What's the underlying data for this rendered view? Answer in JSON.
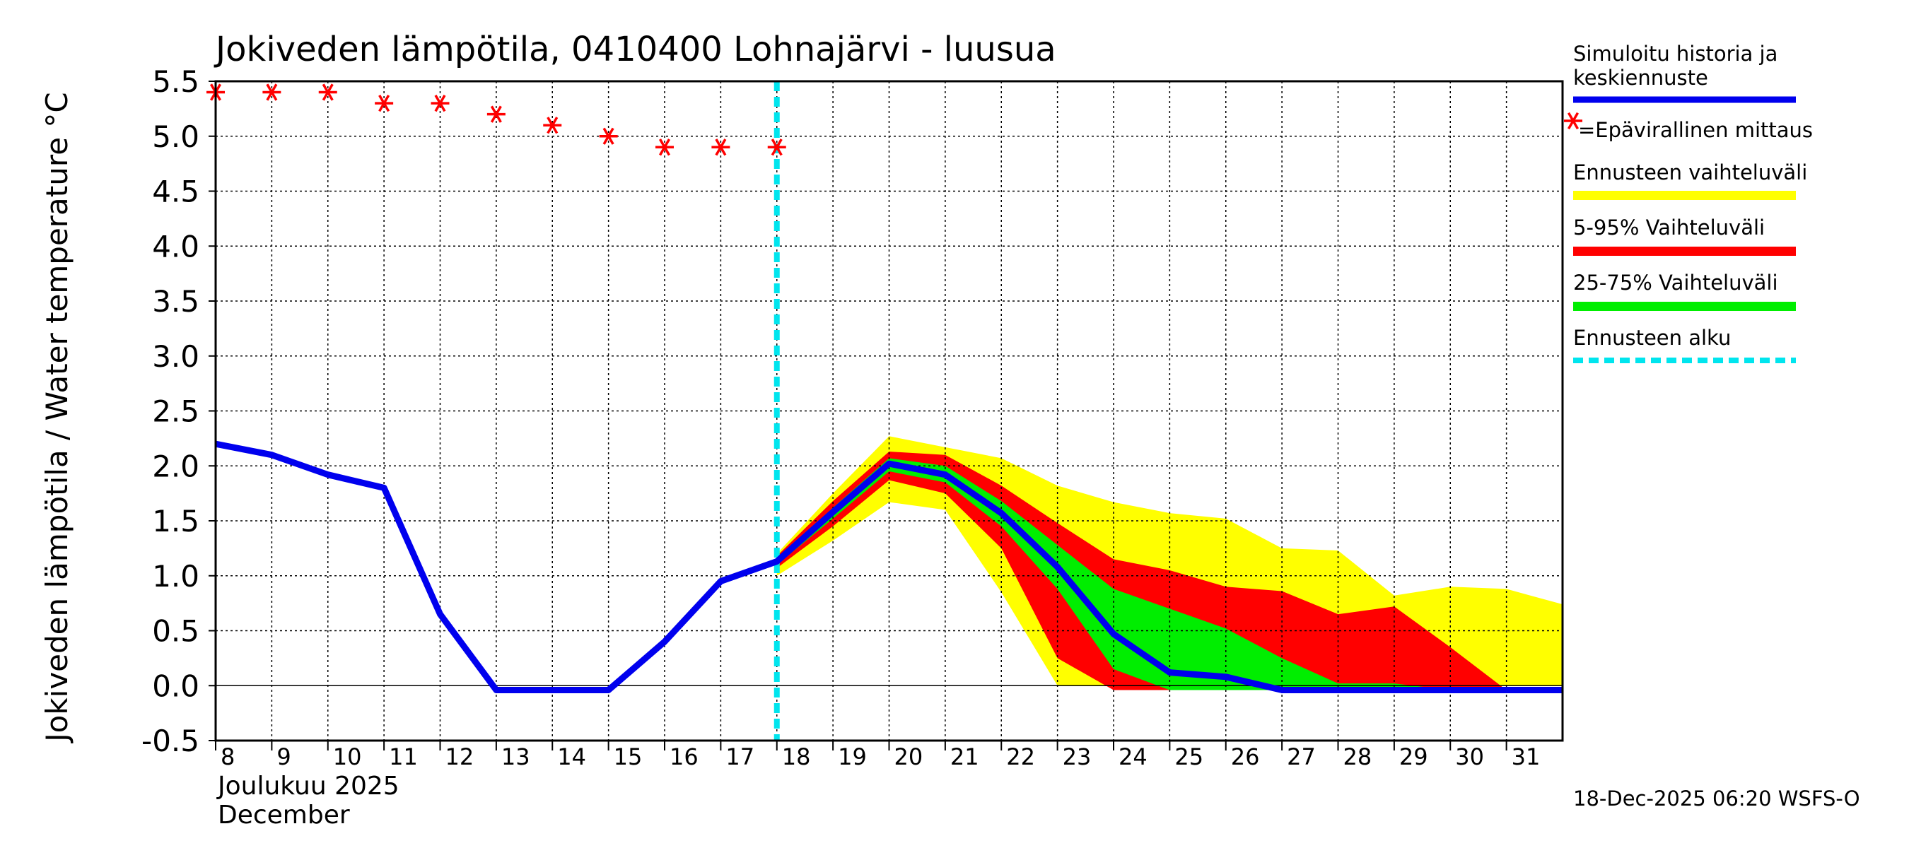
{
  "chart_data": {
    "type": "line",
    "title": "Jokiveden lämpötila, 0410400 Lohnajärvi - luusua",
    "ylabel": "Jokiveden lämpötila / Water temperature   °C",
    "ylim": [
      -0.5,
      5.5
    ],
    "yticks": [
      "5.5",
      "5.0",
      "4.5",
      "4.0",
      "3.5",
      "3.0",
      "2.5",
      "2.0",
      "1.5",
      "1.0",
      "0.5",
      "0.0",
      "-0.5"
    ],
    "xlim": [
      8,
      32
    ],
    "x_tick_labels": [
      "8",
      "9",
      "10",
      "11",
      "12",
      "13",
      "14",
      "15",
      "16",
      "17",
      "18",
      "19",
      "20",
      "21",
      "22",
      "23",
      "24",
      "25",
      "26",
      "27",
      "28",
      "29",
      "30",
      "31"
    ],
    "month_label_fi": "Joulukuu  2025",
    "month_label_en": "December",
    "grid": true,
    "forecast_start_day": 18,
    "series": [
      {
        "name": "Simuloitu historia ja keskiennuste",
        "color": "#0000ee",
        "x": [
          8,
          9,
          10,
          11,
          12,
          13,
          14,
          15,
          16,
          17,
          18,
          19,
          20,
          21,
          22,
          23,
          24,
          25,
          26,
          27,
          28,
          29,
          30,
          31,
          32
        ],
        "values": [
          2.2,
          2.1,
          1.92,
          1.8,
          0.65,
          -0.04,
          -0.04,
          -0.04,
          0.4,
          0.95,
          1.13,
          1.58,
          2.02,
          1.92,
          1.57,
          1.08,
          0.47,
          0.12,
          0.08,
          -0.04,
          -0.04,
          -0.04,
          -0.04,
          -0.04,
          -0.04
        ]
      },
      {
        "name": "=Epävirallinen mittaus",
        "color": "#ff0000",
        "type": "scatter",
        "x": [
          8,
          9,
          10,
          11,
          12,
          13,
          14,
          15,
          16,
          17,
          18
        ],
        "values": [
          5.4,
          5.4,
          5.4,
          5.3,
          5.3,
          5.2,
          5.1,
          5.0,
          4.9,
          4.9,
          4.9
        ]
      }
    ],
    "bands": [
      {
        "name": "Ennusteen vaihteluväli",
        "color": "#ffff00",
        "x": [
          18,
          19,
          20,
          21,
          22,
          23,
          24,
          25,
          26,
          27,
          28,
          29,
          30,
          31,
          32
        ],
        "upper": [
          1.2,
          1.75,
          2.27,
          2.17,
          2.07,
          1.82,
          1.67,
          1.57,
          1.52,
          1.25,
          1.23,
          0.82,
          0.9,
          0.88,
          0.74
        ],
        "lower": [
          1.0,
          1.32,
          1.67,
          1.6,
          0.85,
          0.0,
          0.0,
          0.0,
          0.0,
          0.0,
          0.0,
          0.0,
          0.0,
          0.0,
          0.0
        ]
      },
      {
        "name": "5-95% Vaihteluväli",
        "color": "#ff0000",
        "x": [
          18,
          19,
          20,
          21,
          22,
          23,
          24,
          25,
          26,
          27,
          28,
          29,
          30,
          31,
          32
        ],
        "upper": [
          1.18,
          1.68,
          2.13,
          2.1,
          1.82,
          1.48,
          1.15,
          1.05,
          0.9,
          0.86,
          0.65,
          0.72,
          0.35,
          -0.04,
          -0.04
        ],
        "lower": [
          1.07,
          1.45,
          1.87,
          1.75,
          1.25,
          0.25,
          -0.04,
          -0.04,
          -0.04,
          -0.04,
          -0.04,
          -0.04,
          -0.04,
          -0.04,
          -0.04
        ]
      },
      {
        "name": "25-75% Vaihteluväli",
        "color": "#00ee00",
        "x": [
          18,
          19,
          20,
          21,
          22,
          23,
          24,
          25,
          26,
          27,
          28,
          29,
          30,
          31,
          32
        ],
        "upper": [
          1.15,
          1.62,
          2.07,
          2.0,
          1.68,
          1.28,
          0.88,
          0.7,
          0.52,
          0.25,
          0.02,
          0.02,
          -0.04,
          -0.04,
          -0.04
        ],
        "lower": [
          1.1,
          1.52,
          1.95,
          1.85,
          1.45,
          0.88,
          0.15,
          -0.04,
          -0.04,
          -0.04,
          -0.04,
          -0.04,
          -0.04,
          -0.04,
          -0.04
        ]
      }
    ],
    "legend": {
      "position": "right",
      "entries": [
        {
          "label_lines": [
            "Simuloitu historia ja",
            "keskiennuste"
          ],
          "color": "#0000ee",
          "style": "line"
        },
        {
          "label_lines": [
            "=Epävirallinen mittaus"
          ],
          "color": "#ff0000",
          "style": "marker"
        },
        {
          "label_lines": [
            "Ennusteen vaihteluväli"
          ],
          "color": "#ffff00",
          "style": "band"
        },
        {
          "label_lines": [
            "5-95% Vaihteluväli"
          ],
          "color": "#ff0000",
          "style": "band"
        },
        {
          "label_lines": [
            "25-75% Vaihteluväli"
          ],
          "color": "#00ee00",
          "style": "band"
        },
        {
          "label_lines": [
            "Ennusteen alku"
          ],
          "color": "#00e5ee",
          "style": "dashed"
        }
      ]
    },
    "footer": "18-Dec-2025 06:20 WSFS-O"
  }
}
